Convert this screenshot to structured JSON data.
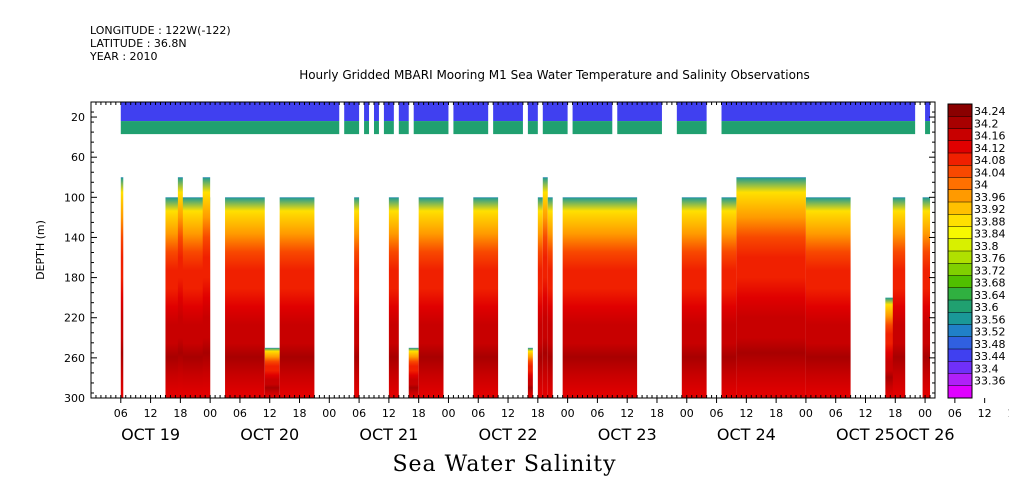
{
  "header": {
    "longitude": "LONGITUDE : 122W(-122)",
    "latitude": "LATITUDE : 36.8N",
    "year": "YEAR : 2010"
  },
  "chart_data": {
    "type": "heatmap",
    "title": "Hourly Gridded MBARI Mooring M1 Sea Water Temperature and Salinity Observations",
    "subtitle": "Sea Water Salinity",
    "ylabel": "DEPTH (m)",
    "xlabel": "",
    "y_axis": {
      "reversed": true,
      "ylim": [
        5,
        300
      ],
      "ticks": [
        20,
        60,
        100,
        140,
        180,
        220,
        260,
        300
      ]
    },
    "x_axis": {
      "hour_ticks": [
        "06",
        "12",
        "18",
        "00",
        "06",
        "12",
        "18",
        "00",
        "06",
        "12",
        "18",
        "00",
        "06",
        "12",
        "18",
        "00",
        "06",
        "12",
        "18",
        "00",
        "06",
        "12",
        "18",
        "00",
        "06",
        "12",
        "18",
        "00",
        "06",
        "12",
        "18",
        "00"
      ],
      "day_labels": [
        {
          "label": "OCT 19",
          "hour": 12
        },
        {
          "label": "OCT 20",
          "hour": 36
        },
        {
          "label": "OCT 21",
          "hour": 60
        },
        {
          "label": "OCT 22",
          "hour": 84
        },
        {
          "label": "OCT 23",
          "hour": 108
        },
        {
          "label": "OCT 24",
          "hour": 132
        },
        {
          "label": "OCT 25",
          "hour": 156
        },
        {
          "label": "OCT 26",
          "hour": 168
        }
      ]
    },
    "colorbar": {
      "labels": [
        "34.24",
        "34.2",
        "34.16",
        "34.12",
        "34.08",
        "34.04",
        "34",
        "33.96",
        "33.92",
        "33.88",
        "33.84",
        "33.8",
        "33.76",
        "33.72",
        "33.68",
        "33.64",
        "33.6",
        "33.56",
        "33.52",
        "33.48",
        "33.44",
        "33.4",
        "33.36"
      ],
      "colors": [
        "#8a0000",
        "#a80000",
        "#c80000",
        "#e00000",
        "#f02000",
        "#f84800",
        "#ff7000",
        "#ff9a00",
        "#ffc000",
        "#ffe000",
        "#f8f800",
        "#d8f000",
        "#b0e000",
        "#80d000",
        "#50c000",
        "#30b040",
        "#20a070",
        "#1a9898",
        "#2080c8",
        "#3060e0",
        "#4040f0",
        "#7030f8",
        "#b020f8",
        "#e000ff"
      ]
    },
    "salinity_profile": {
      "depths": [
        25,
        35,
        95,
        120,
        140,
        160,
        180,
        200,
        220,
        240,
        255,
        275,
        295
      ],
      "values": [
        33.52,
        33.6,
        33.9,
        33.98,
        34.04,
        34.08,
        34.1,
        34.12,
        34.15,
        34.18,
        34.22,
        34.18,
        34.12
      ]
    },
    "surface_segments_hours": [
      [
        6,
        50
      ],
      [
        51,
        54
      ],
      [
        55,
        56
      ],
      [
        57,
        58
      ],
      [
        59,
        61
      ],
      [
        62,
        64
      ],
      [
        65,
        72
      ],
      [
        73,
        80
      ],
      [
        81,
        87
      ],
      [
        88,
        90
      ],
      [
        91,
        96
      ],
      [
        97,
        105
      ],
      [
        106,
        115
      ],
      [
        118,
        124
      ],
      [
        127,
        166
      ],
      [
        168,
        169
      ]
    ],
    "deep_segments_hours": [
      {
        "start": 6,
        "end": 6.5,
        "top": 80
      },
      {
        "start": 15,
        "end": 24,
        "top": 100
      },
      {
        "start": 17.5,
        "end": 18.5,
        "top": 80
      },
      {
        "start": 22.5,
        "end": 24,
        "top": 80
      },
      {
        "start": 27,
        "end": 35,
        "top": 100
      },
      {
        "start": 35,
        "end": 38,
        "top": 250
      },
      {
        "start": 38,
        "end": 45,
        "top": 100
      },
      {
        "start": 53,
        "end": 54,
        "top": 100
      },
      {
        "start": 60,
        "end": 62,
        "top": 100
      },
      {
        "start": 64,
        "end": 66,
        "top": 250
      },
      {
        "start": 66,
        "end": 71,
        "top": 100
      },
      {
        "start": 77,
        "end": 82,
        "top": 100
      },
      {
        "start": 88,
        "end": 89,
        "top": 250
      },
      {
        "start": 90,
        "end": 91,
        "top": 100
      },
      {
        "start": 91,
        "end": 92,
        "top": 80
      },
      {
        "start": 92,
        "end": 93,
        "top": 100
      },
      {
        "start": 95,
        "end": 110,
        "top": 100
      },
      {
        "start": 119,
        "end": 124,
        "top": 100
      },
      {
        "start": 127,
        "end": 130,
        "top": 100
      },
      {
        "start": 130,
        "end": 144,
        "top": 80
      },
      {
        "start": 144,
        "end": 153,
        "top": 100
      },
      {
        "start": 160,
        "end": 162,
        "top": 200
      },
      {
        "start": 161.5,
        "end": 164,
        "top": 100
      },
      {
        "start": 167.5,
        "end": 169,
        "top": 100
      }
    ]
  }
}
